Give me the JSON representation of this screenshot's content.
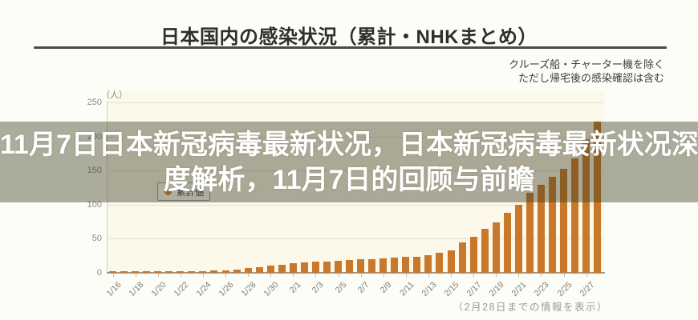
{
  "header": {
    "title": "日本国内の感染状況（累計・NHKまとめ）",
    "source_note_line1": "クルーズ船・チャーター機を除く",
    "source_note_line2": "ただし帰宅後の感染確認は含む"
  },
  "overlay_banner": {
    "full_text": "11月7日日本新冠病毒最新状况，日本新冠病毒最新状况深度解析，11月7日的回顾与前瞻",
    "lines": [
      "11月7日日本新冠病毒最新状况，日本新冠病毒最新状况深",
      "度解析，11月7日的回顾与前瞻"
    ],
    "text_color": "#FFFFFF"
  },
  "chart_data": {
    "type": "bar",
    "title": "日本国内の感染状況（累計・NHKまとめ）",
    "unit_label": "（人）",
    "legend": {
      "label": "累計値",
      "marker_color": "#D08A2E",
      "position": "inside-top-left"
    },
    "bar_color": "#C8782A",
    "grid": true,
    "ylim": [
      0,
      250
    ],
    "yticks": [
      0,
      50,
      100,
      150,
      200,
      250
    ],
    "categories": [
      "1/16",
      "1/17",
      "1/18",
      "1/19",
      "1/20",
      "1/21",
      "1/22",
      "1/23",
      "1/24",
      "1/25",
      "1/26",
      "1/27",
      "1/28",
      "1/29",
      "1/30",
      "1/31",
      "2/1",
      "2/2",
      "2/3",
      "2/4",
      "2/5",
      "2/6",
      "2/7",
      "2/8",
      "2/9",
      "2/10",
      "2/11",
      "2/12",
      "2/13",
      "2/14",
      "2/15",
      "2/16",
      "2/17",
      "2/18",
      "2/19",
      "2/20",
      "2/21",
      "2/22",
      "2/23",
      "2/24",
      "2/25",
      "2/26",
      "2/27",
      "2/28"
    ],
    "values": [
      1,
      1,
      1,
      1,
      1,
      1,
      1,
      1,
      2,
      3,
      4,
      5,
      7,
      8,
      10,
      12,
      14,
      15,
      16,
      17,
      18,
      19,
      20,
      20,
      21,
      22,
      23,
      24,
      26,
      29,
      33,
      45,
      53,
      65,
      74,
      88,
      100,
      117,
      129,
      141,
      152,
      168,
      196,
      222
    ],
    "x_tick_labels": [
      "1/16",
      "1/18",
      "1/20",
      "1/22",
      "1/24",
      "1/26",
      "1/28",
      "1/30",
      "2/1",
      "2/3",
      "2/5",
      "2/7",
      "2/9",
      "2/11",
      "2/13",
      "2/15",
      "2/17",
      "2/19",
      "2/21",
      "2/23",
      "2/25",
      "2/27"
    ],
    "footer_note": "（2月28日までの情報を表示）"
  }
}
